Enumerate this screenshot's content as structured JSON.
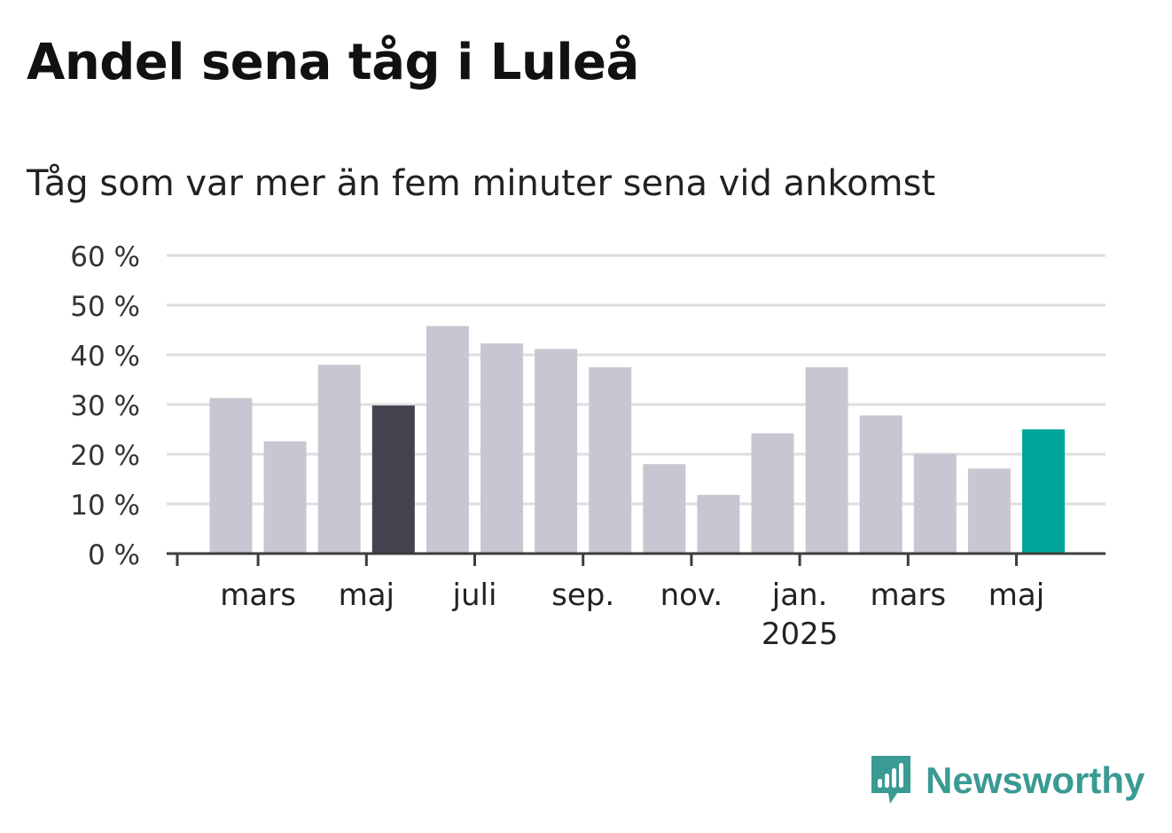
{
  "title": "Andel sena tåg i Luleå",
  "subtitle": "Tåg som var mer än fem minuter sena vid ankomst",
  "brand": {
    "name": "Newsworthy",
    "icon": "newsworthy-logo-icon",
    "color": "#3a9a94"
  },
  "chart_data": {
    "type": "bar",
    "unit": "%",
    "ylim": [
      0,
      60
    ],
    "yticks": [
      0,
      10,
      20,
      30,
      40,
      50,
      60
    ],
    "ytick_labels": [
      "0 %",
      "10 %",
      "20 %",
      "30 %",
      "40 %",
      "50 %",
      "60 %"
    ],
    "grid": true,
    "values": [
      31.3,
      22.6,
      38.0,
      29.8,
      45.8,
      42.3,
      41.2,
      37.5,
      18.0,
      11.8,
      24.2,
      37.5,
      27.8,
      20.1,
      17.1,
      25.0
    ],
    "x_labels": [
      {
        "index": 1,
        "label": "mars",
        "sub": ""
      },
      {
        "index": 3,
        "label": "maj",
        "sub": ""
      },
      {
        "index": 5,
        "label": "juli",
        "sub": ""
      },
      {
        "index": 7,
        "label": "sep.",
        "sub": ""
      },
      {
        "index": 9,
        "label": "nov.",
        "sub": ""
      },
      {
        "index": 11,
        "label": "jan.",
        "sub": "2025"
      },
      {
        "index": 13,
        "label": "mars",
        "sub": ""
      },
      {
        "index": 15,
        "label": "maj",
        "sub": ""
      }
    ],
    "colors": {
      "default": "#c8c7d1",
      "comparison": "#43424e",
      "latest": "#00a599",
      "axis": "#3d3d3d",
      "grid": "#dedede"
    },
    "comparison_index": 3,
    "latest_index": 15
  }
}
